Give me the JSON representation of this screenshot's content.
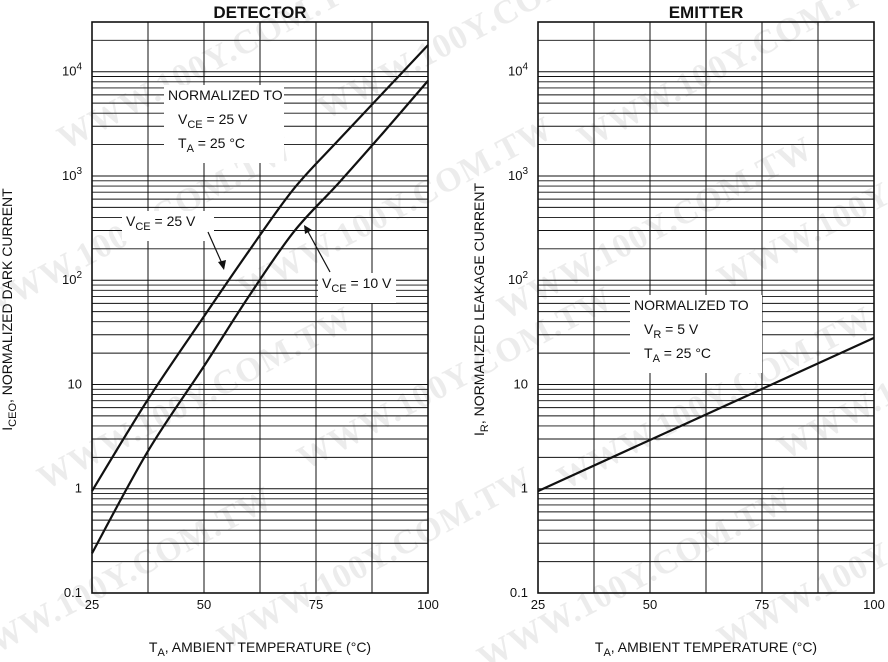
{
  "watermark": {
    "text": "WWW.100Y.COM.TW",
    "color": "#969696"
  },
  "chart_data": [
    {
      "id": "detector",
      "type": "line",
      "title": "DETECTOR",
      "xlabel": {
        "main": "T",
        "sub": "A",
        "rest": ", AMBIENT TEMPERATURE (°C)"
      },
      "ylabel": {
        "main": "I",
        "sub": "CEO",
        "rest": ", NORMALIZED DARK CURRENT"
      },
      "xlim": [
        25,
        100
      ],
      "ylim": [
        0.1,
        30000
      ],
      "yscale": "log",
      "grid": true,
      "xticks": [
        25,
        50,
        75,
        100
      ],
      "xtick_labels": [
        "25",
        "50",
        "75",
        "100"
      ],
      "yticks": [
        0.1,
        1,
        10,
        100,
        1000,
        10000
      ],
      "ytick_labels": [
        {
          "base": "0.1",
          "exp": ""
        },
        {
          "base": "1",
          "exp": ""
        },
        {
          "base": "10",
          "exp": ""
        },
        {
          "base": "10",
          "exp": "2"
        },
        {
          "base": "10",
          "exp": "3"
        },
        {
          "base": "10",
          "exp": "4"
        }
      ],
      "series": [
        {
          "name": "V_CE = 25 V",
          "color": "#111111",
          "x": [
            25,
            37.5,
            50,
            60,
            70,
            80,
            90,
            100
          ],
          "y": [
            0.95,
            7.2,
            45,
            190,
            750,
            2200,
            6300,
            18000
          ]
        },
        {
          "name": "V_CE = 10 V",
          "color": "#111111",
          "x": [
            25,
            37.5,
            50,
            60,
            70,
            80,
            90,
            100
          ],
          "y": [
            0.24,
            2.3,
            15,
            70,
            290,
            850,
            2600,
            8200
          ]
        }
      ],
      "annotations": [
        {
          "id": "norm-block",
          "lines": [
            {
              "main": "NORMALIZED TO",
              "sub": "",
              "rest": ""
            },
            {
              "main": "V",
              "sub": "CE",
              "rest": " = 25 V"
            },
            {
              "main": "T",
              "sub": "A",
              "rest": " = 25 °C"
            }
          ]
        },
        {
          "id": "vce25-label",
          "lines": [
            {
              "main": "V",
              "sub": "CE",
              "rest": " = 25 V"
            }
          ]
        },
        {
          "id": "vce10-label",
          "lines": [
            {
              "main": "V",
              "sub": "CE",
              "rest": " = 10 V"
            }
          ]
        }
      ]
    },
    {
      "id": "emitter",
      "type": "line",
      "title": "EMITTER",
      "xlabel": {
        "main": "T",
        "sub": "A",
        "rest": ", AMBIENT TEMPERATURE (°C)"
      },
      "ylabel": {
        "main": "I",
        "sub": "R",
        "rest": ", NORMALIZED LEAKAGE CURRENT"
      },
      "xlim": [
        25,
        100
      ],
      "ylim": [
        0.1,
        30000
      ],
      "yscale": "log",
      "grid": true,
      "xticks": [
        25,
        50,
        75,
        100
      ],
      "xtick_labels": [
        "25",
        "50",
        "75",
        "100"
      ],
      "yticks": [
        0.1,
        1,
        10,
        100,
        1000,
        10000
      ],
      "ytick_labels": [
        {
          "base": "0.1",
          "exp": ""
        },
        {
          "base": "1",
          "exp": ""
        },
        {
          "base": "10",
          "exp": ""
        },
        {
          "base": "10",
          "exp": "2"
        },
        {
          "base": "10",
          "exp": "3"
        },
        {
          "base": "10",
          "exp": "4"
        }
      ],
      "series": [
        {
          "name": "I_R",
          "color": "#111111",
          "x": [
            25,
            100
          ],
          "y": [
            0.95,
            28
          ]
        }
      ],
      "annotations": [
        {
          "id": "norm-block",
          "lines": [
            {
              "main": "NORMALIZED TO",
              "sub": "",
              "rest": ""
            },
            {
              "main": "V",
              "sub": "R",
              "rest": " = 5 V"
            },
            {
              "main": "T",
              "sub": "A",
              "rest": " = 25 °C"
            }
          ]
        }
      ]
    }
  ]
}
